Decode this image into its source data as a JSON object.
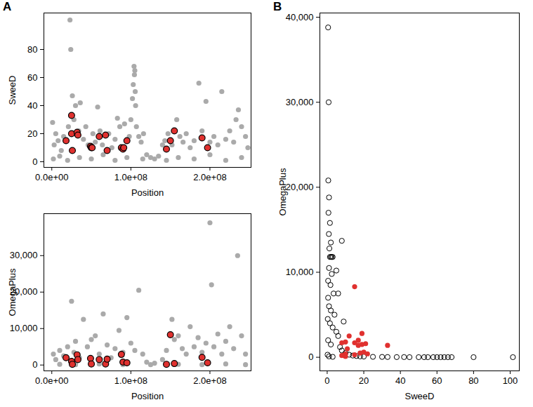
{
  "chart_data": [
    {
      "type": "scatter",
      "title": "A",
      "x_label": "Position",
      "y_label": "SweeD",
      "xlim": [
        -10000000,
        252000000
      ],
      "ylim": [
        -4,
        106
      ],
      "xticks": [
        {
          "value": 0,
          "label": "0.0e+00"
        },
        {
          "value": 100000000,
          "label": "1.0e+08"
        },
        {
          "value": 200000000,
          "label": "2.0e+08"
        }
      ],
      "yticks": [
        0,
        20,
        40,
        60,
        80
      ],
      "grid": false,
      "series": [
        {
          "color": "#aaaaaa",
          "marker": "circle",
          "x": [
            1000000,
            3000000,
            5000000,
            8000000,
            12000000,
            15000000,
            21000000,
            23000000,
            24000000,
            26000000,
            28000000,
            30000000,
            34000000,
            36000000,
            40000000,
            43000000,
            46000000,
            52000000,
            55000000,
            58000000,
            61000000,
            64000000,
            72000000,
            76000000,
            80000000,
            83000000,
            86000000,
            92000000,
            98000000,
            100000000,
            102000000,
            103000000,
            104000000,
            104500000,
            105000000,
            105500000,
            106000000,
            107000000,
            110000000,
            113000000,
            116000000,
            120000000,
            125000000,
            130000000,
            135000000,
            140000000,
            143000000,
            147000000,
            152000000,
            158000000,
            162000000,
            166000000,
            170000000,
            175000000,
            180000000,
            186000000,
            190000000,
            195000000,
            200000000,
            205000000,
            210000000,
            215000000,
            220000000,
            225000000,
            230000000,
            233000000,
            236000000,
            240000000,
            245000000,
            248000000,
            2000000,
            10000000,
            20000000,
            35000000,
            50000000,
            65000000,
            80000000,
            95000000,
            115000000,
            145000000,
            160000000,
            180000000,
            200000000,
            220000000,
            240000000
          ],
          "values": [
            28,
            12,
            20,
            15,
            8,
            18,
            25,
            101,
            80,
            47,
            30,
            40,
            22,
            42,
            16,
            25,
            12,
            20,
            14,
            39,
            22,
            12,
            20,
            10,
            16,
            31,
            25,
            27,
            18,
            30,
            45,
            55,
            68,
            62,
            65,
            50,
            40,
            25,
            18,
            14,
            20,
            5,
            3,
            2,
            4,
            12,
            15,
            20,
            12,
            30,
            18,
            14,
            20,
            10,
            15,
            56,
            22,
            43,
            14,
            18,
            12,
            50,
            16,
            22,
            14,
            30,
            37,
            25,
            18,
            10,
            2,
            4,
            1,
            3,
            2,
            5,
            1,
            3,
            2,
            1,
            3,
            2,
            5,
            1,
            3
          ]
        },
        {
          "color": "#e0312f",
          "marker": "circle_edged",
          "x": [
            18000000,
            25000000,
            25000000,
            26000000,
            32000000,
            33000000,
            49000000,
            50000000,
            51000000,
            60000000,
            68000000,
            70000000,
            88000000,
            90000000,
            91000000,
            95000000,
            145000000,
            150000000,
            155000000,
            190000000,
            197000000
          ],
          "values": [
            15,
            33,
            20,
            8,
            21,
            19,
            11,
            10,
            10,
            18,
            19,
            8,
            10,
            9,
            10,
            15,
            9,
            15,
            22,
            17,
            10
          ]
        }
      ]
    },
    {
      "type": "scatter",
      "x_label": "Position",
      "y_label": "OmegaPlus",
      "xlim": [
        -10000000,
        252000000
      ],
      "ylim": [
        -1600,
        41500
      ],
      "xticks": [
        {
          "value": 0,
          "label": "0.0e+00"
        },
        {
          "value": 100000000,
          "label": "1.0e+08"
        },
        {
          "value": 200000000,
          "label": "2.0e+08"
        }
      ],
      "yticks": [
        0,
        {
          "value": 10000,
          "label": "10,000"
        },
        {
          "value": 20000,
          "label": "20,000"
        },
        {
          "value": 30000,
          "label": "30,000"
        }
      ],
      "grid": false,
      "series": [
        {
          "color": "#aaaaaa",
          "marker": "circle",
          "x": [
            2000000,
            5000000,
            10000000,
            15000000,
            20000000,
            25000000,
            28000000,
            30000000,
            35000000,
            40000000,
            45000000,
            50000000,
            55000000,
            60000000,
            65000000,
            70000000,
            75000000,
            80000000,
            85000000,
            90000000,
            95000000,
            100000000,
            105000000,
            110000000,
            115000000,
            120000000,
            130000000,
            140000000,
            145000000,
            152000000,
            155000000,
            160000000,
            165000000,
            170000000,
            175000000,
            180000000,
            185000000,
            190000000,
            195000000,
            200000000,
            202000000,
            205000000,
            210000000,
            215000000,
            220000000,
            225000000,
            230000000,
            235000000,
            240000000,
            245000000,
            10000000,
            30000000,
            60000000,
            90000000,
            125000000,
            160000000,
            190000000,
            220000000,
            245000000
          ],
          "values": [
            3000,
            1500,
            4000,
            2500,
            5000,
            17500,
            3500,
            6500,
            2000,
            12500,
            5000,
            7000,
            8000,
            3000,
            14000,
            5500,
            2000,
            4500,
            9500,
            3500,
            13000,
            6000,
            4000,
            20500,
            3000,
            800,
            500,
            1500,
            4000,
            12500,
            7000,
            8000,
            4500,
            3000,
            10500,
            5000,
            7500,
            3500,
            6000,
            39000,
            22000,
            5000,
            8500,
            3000,
            6500,
            10500,
            4500,
            30000,
            8000,
            3000,
            200,
            100,
            300,
            100,
            100,
            200,
            100,
            300,
            100
          ]
        },
        {
          "color": "#e0312f",
          "marker": "circle_edged",
          "x": [
            18000000,
            25000000,
            26000000,
            32000000,
            33000000,
            49000000,
            50000000,
            60000000,
            68000000,
            70000000,
            88000000,
            90000000,
            95000000,
            145000000,
            150000000,
            155000000,
            190000000,
            197000000
          ],
          "values": [
            2000,
            1000,
            200,
            2800,
            1500,
            1800,
            300,
            1500,
            300,
            1600,
            2900,
            800,
            600,
            200,
            8300,
            400,
            2100,
            600
          ]
        }
      ]
    },
    {
      "type": "scatter",
      "title": "B",
      "x_label": "SweeD",
      "y_label": "OmegaPlus",
      "xlim": [
        -4,
        105
      ],
      "ylim": [
        -1600,
        40500
      ],
      "xticks": [
        0,
        20,
        40,
        60,
        80,
        100
      ],
      "yticks": [
        0,
        {
          "value": 10000,
          "label": "10,000"
        },
        {
          "value": 20000,
          "label": "20,000"
        },
        {
          "value": 30000,
          "label": "30,000"
        },
        {
          "value": 40000,
          "label": "40,000"
        }
      ],
      "grid": false,
      "series": [
        {
          "color": "#000000",
          "marker": "circle_open",
          "x": [
            0.5,
            0.8,
            0.6,
            1,
            0.7,
            1.5,
            0.9,
            2,
            1.2,
            1.5,
            2,
            2.5,
            3,
            1,
            2.5,
            0.5,
            1.8,
            3.5,
            0.5,
            1,
            2,
            4,
            0.3,
            1.5,
            3,
            5,
            6,
            0.5,
            2,
            7,
            8,
            10,
            12,
            14,
            16,
            18,
            20,
            25,
            30,
            33,
            38,
            42,
            45,
            50,
            53,
            55,
            58,
            60,
            62,
            64,
            66,
            68,
            80,
            101.5,
            8,
            9,
            5,
            6,
            0.2,
            1,
            3
          ],
          "values": [
            38800,
            30000,
            20800,
            18800,
            17000,
            15800,
            14500,
            13500,
            12800,
            11800,
            11800,
            11800,
            11800,
            10500,
            9800,
            9000,
            8500,
            7500,
            7000,
            6000,
            5500,
            5000,
            4500,
            4000,
            3500,
            3000,
            2500,
            2000,
            1500,
            1200,
            800,
            500,
            300,
            200,
            150,
            100,
            80,
            50,
            40,
            30,
            20,
            20,
            10,
            10,
            10,
            10,
            10,
            10,
            10,
            10,
            10,
            10,
            10,
            10,
            13700,
            4200,
            10200,
            7500,
            300,
            100,
            50
          ]
        },
        {
          "color": "#e0312f",
          "marker": "circle",
          "x": [
            15,
            8,
            10,
            12,
            17,
            19,
            33,
            21,
            10,
            18,
            20,
            15,
            9,
            22,
            11,
            17,
            10,
            8,
            19,
            15
          ],
          "values": [
            8300,
            1700,
            1800,
            2500,
            2000,
            2800,
            1400,
            1600,
            400,
            500,
            600,
            300,
            200,
            400,
            1000,
            1400,
            100,
            200,
            1500,
            1700
          ]
        }
      ]
    }
  ]
}
